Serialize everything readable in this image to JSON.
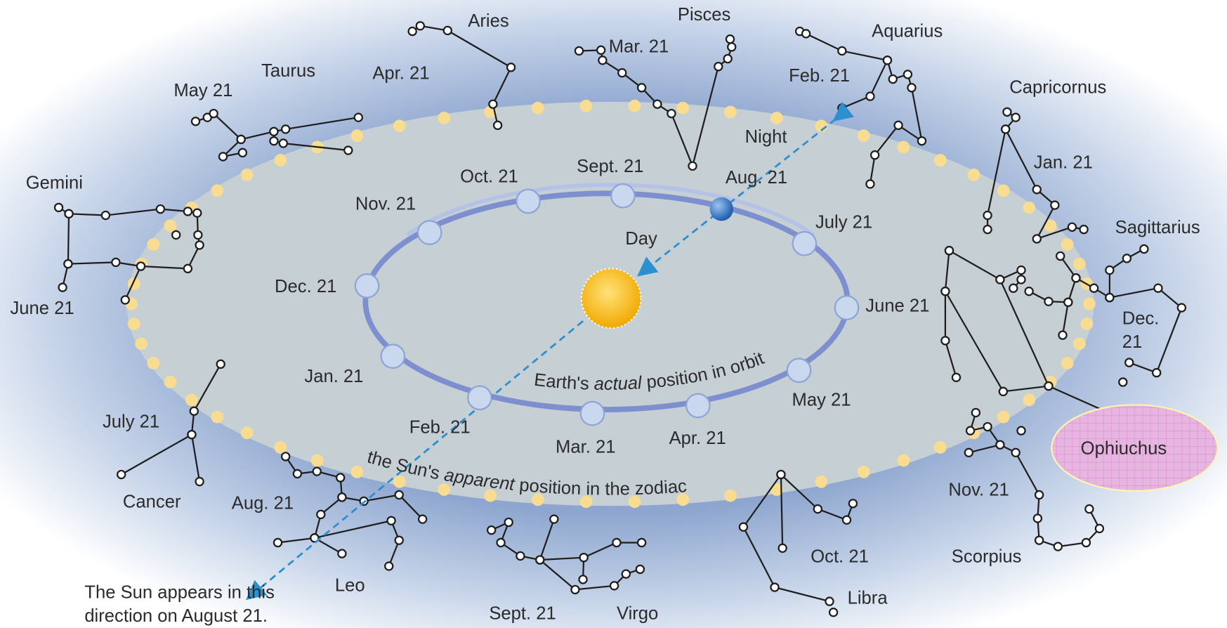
{
  "constellations": [
    "Aries",
    "Pisces",
    "Aquarius",
    "Taurus",
    "Capricornus",
    "Gemini",
    "Sagittarius",
    "Ophiuchus",
    "Scorpius",
    "Libra",
    "Virgo",
    "Leo",
    "Cancer"
  ],
  "zodiac_dates": [
    "Apr. 21",
    "Mar. 21",
    "Feb. 21",
    "May 21",
    "Jan. 21",
    "June 21",
    [
      "Dec.",
      "21"
    ],
    "July 21",
    "Nov. 21",
    "Aug. 21",
    "Oct. 21",
    "Sept. 21"
  ],
  "orbit_dates": [
    "Oct. 21",
    "Sept. 21",
    "Aug. 21",
    "Nov. 21",
    "July 21",
    "Dec. 21",
    "June 21",
    "Jan. 21",
    "May 21",
    "Feb. 21",
    "Mar. 21",
    "Apr. 21"
  ],
  "night": "Night",
  "day": "Day",
  "orbit_label": {
    "before": "Earth's ",
    "emphasis": "actual",
    "after": " position in orbit"
  },
  "zodiac_label": {
    "before": "the Sun's ",
    "emphasis": "apparent",
    "after": " position in the zodiac"
  },
  "caption": [
    "The Sun appears in this",
    "direction on August 21."
  ]
}
